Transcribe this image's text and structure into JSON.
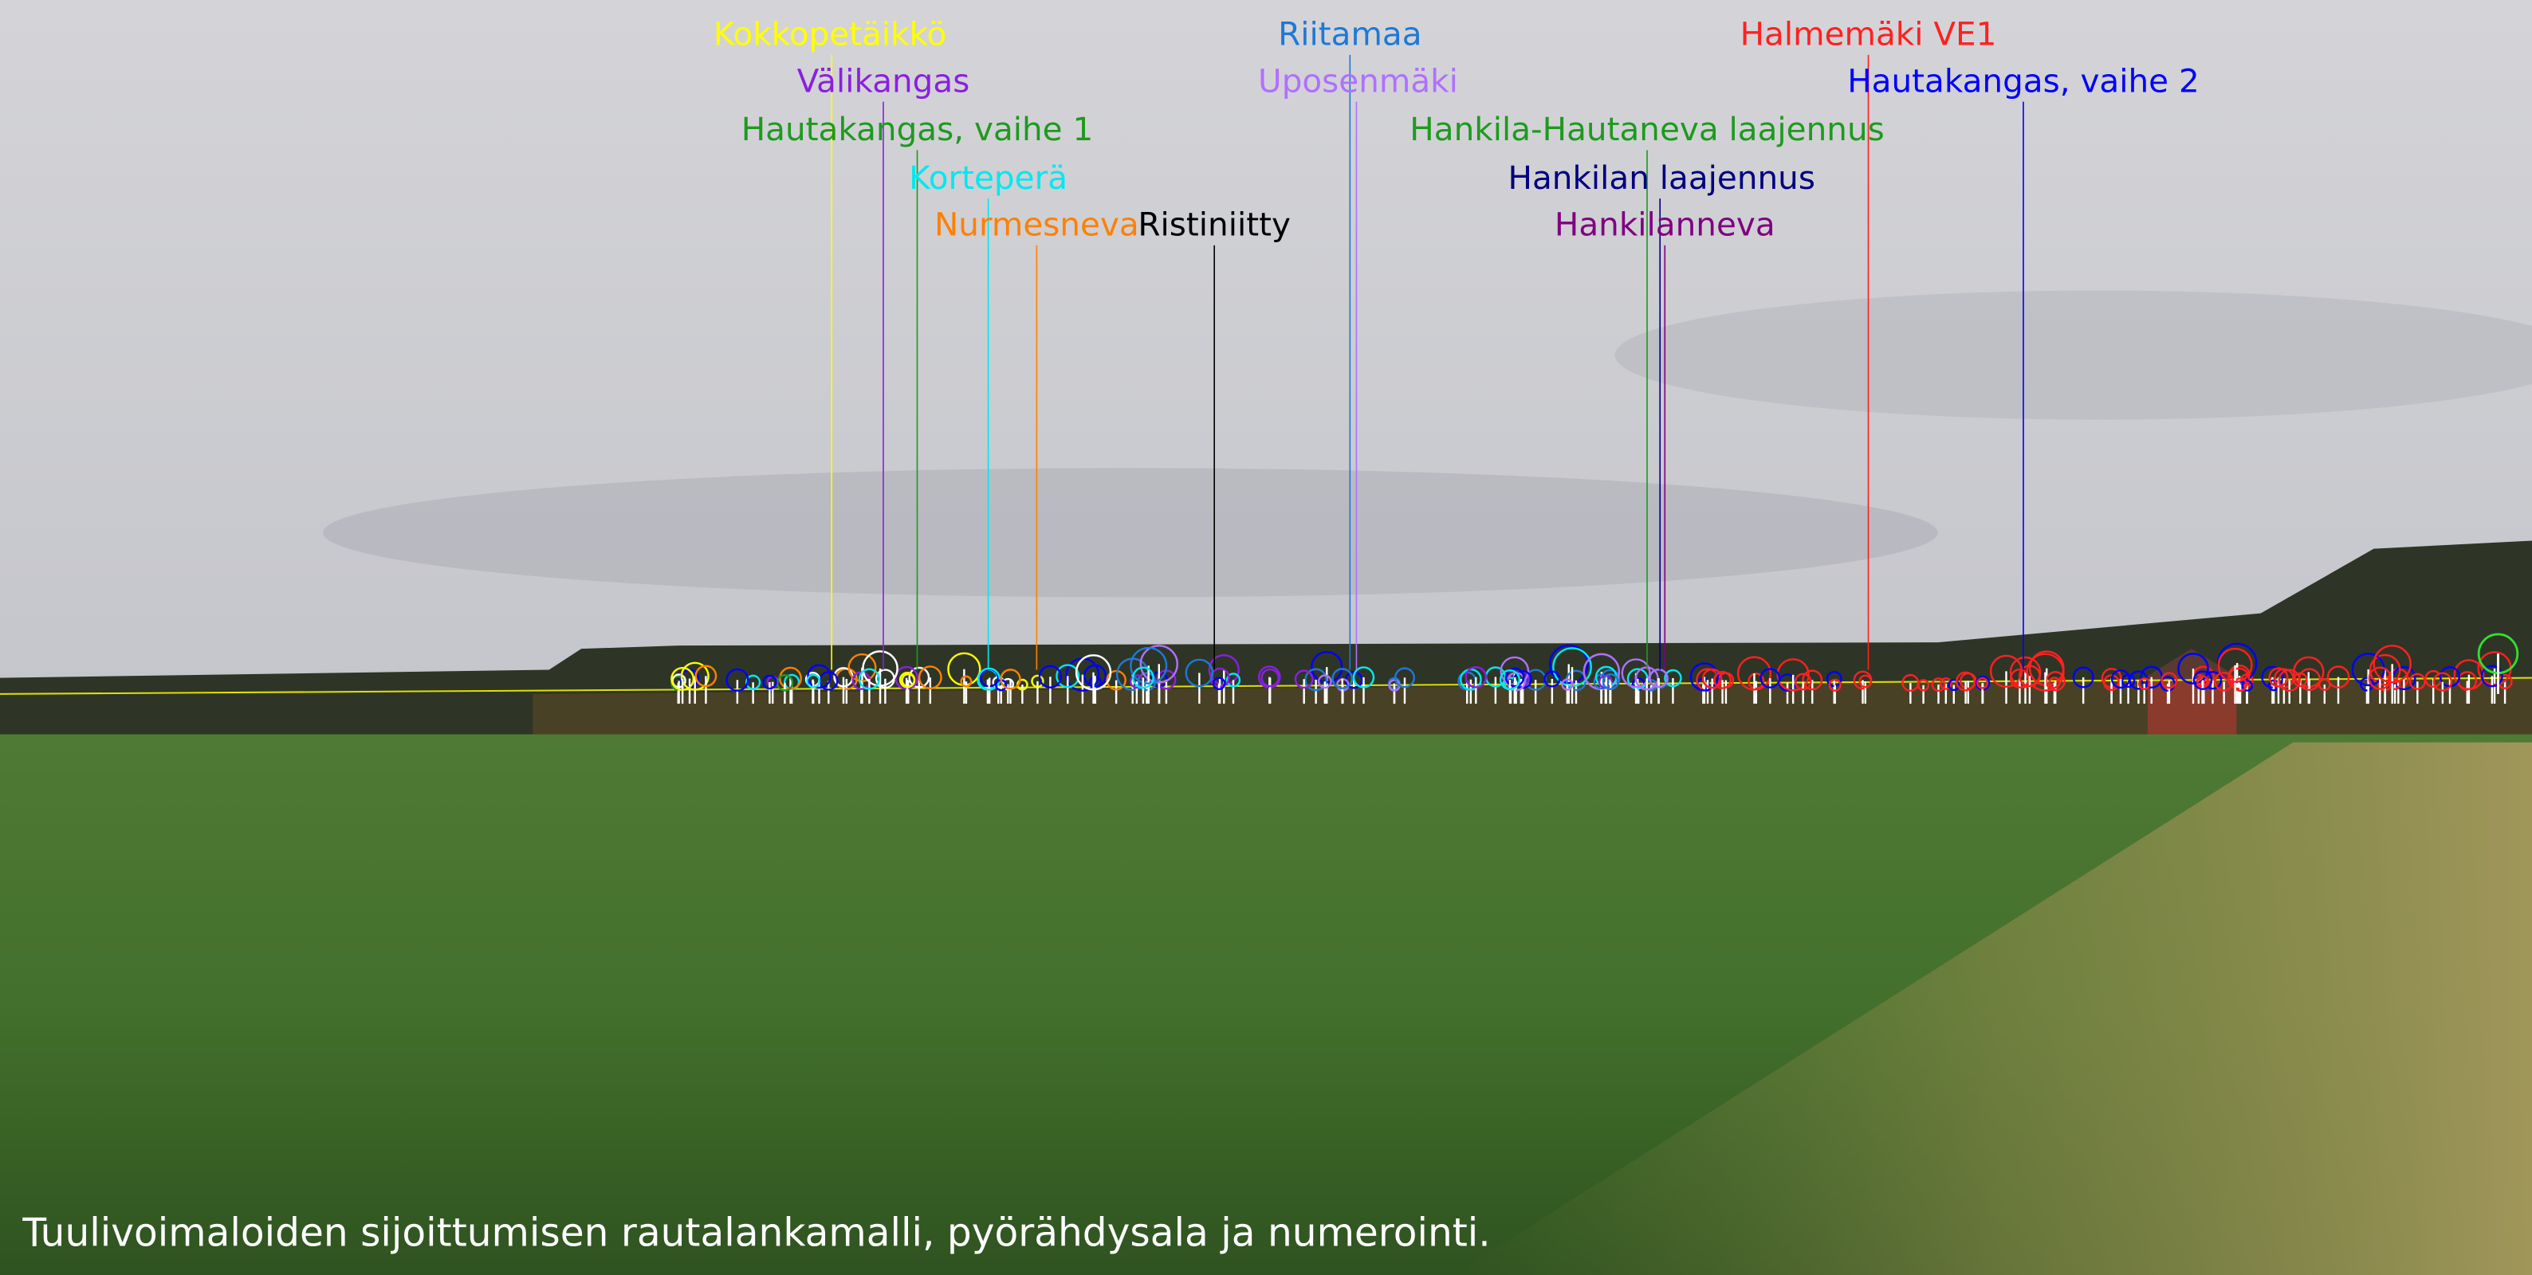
{
  "labels": [
    {
      "text": "Kokkopetäikkö",
      "color": "#ffff00"
    },
    {
      "text": "Välikangas",
      "color": "#8b1fe0"
    },
    {
      "text": "Hautakangas, vaihe 1",
      "color": "#1e9a1e"
    },
    {
      "text": "Korteperä",
      "color": "#00e8f0"
    },
    {
      "text": "Nurmesneva",
      "color": "#ff8000"
    },
    {
      "text": "Ristiniitty",
      "color": "#000000"
    },
    {
      "text": "Riitamaa",
      "color": "#1f78d6"
    },
    {
      "text": "Uposenmäki",
      "color": "#b070ff"
    },
    {
      "text": "Hankila-Hautaneva laajennus",
      "color": "#1e9a1e"
    },
    {
      "text": "Hankilan laajennus",
      "color": "#000080"
    },
    {
      "text": "Hankilanneva",
      "color": "#800080"
    },
    {
      "text": "Halmemäki VE1",
      "color": "#ff2020"
    },
    {
      "text": "Hautakangas, vaihe 2",
      "color": "#0000ff"
    }
  ],
  "caption": "Tuulivoimaloiden sijoittumisen rautalankamalli, pyörähdysala ja numerointi."
}
